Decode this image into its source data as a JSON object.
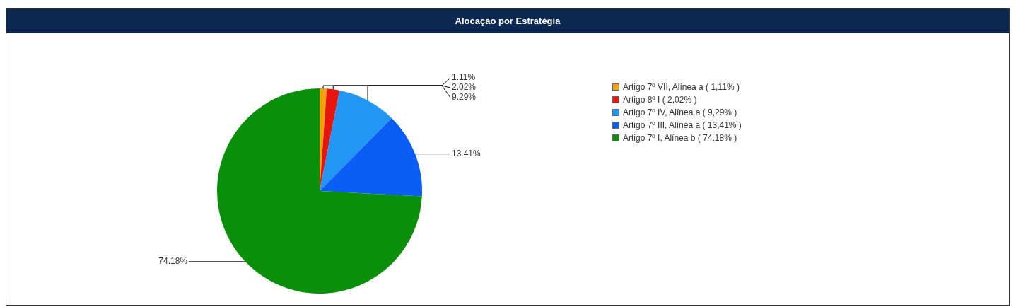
{
  "chart_data": {
    "type": "pie",
    "title": "Alocação por Estratégia",
    "categories": [
      "Artigo 7º VII, Alínea a  ( 1,11% )",
      "Artigo 8º I  ( 2,02% )",
      "Artigo 7º IV, Alínea a  ( 9,29% )",
      "Artigo 7º III, Alínea a  ( 13,41% )",
      "Artigo 7º I, Alínea b  ( 74,18% )"
    ],
    "values": [
      1.11,
      2.02,
      9.29,
      13.41,
      74.18
    ],
    "colors": [
      "#f0a30a",
      "#e8150d",
      "#2196f3",
      "#0a5ef5",
      "#0a8f0a"
    ],
    "value_labels": [
      "1.11%",
      "2.02%",
      "9.29%",
      "13.41%",
      "74.18%"
    ],
    "legend": "right"
  }
}
